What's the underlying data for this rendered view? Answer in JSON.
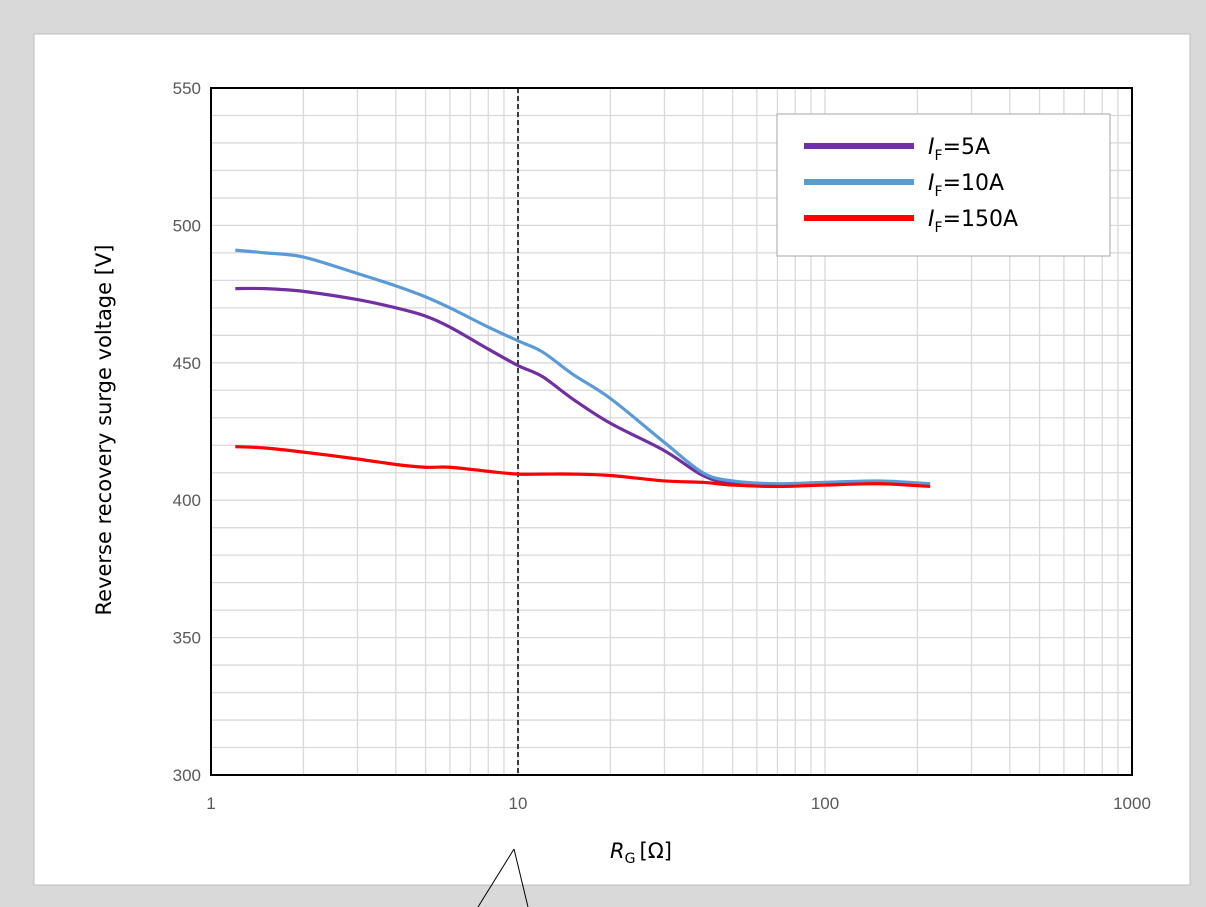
{
  "chart_data": {
    "type": "line",
    "title": "",
    "xlabel": {
      "main": "R",
      "sub": "G",
      "unit": "[Ω]"
    },
    "ylabel": "Reverse recovery surge voltage [V]",
    "xscale": "log",
    "xlim": [
      1,
      1000
    ],
    "ylim": [
      300,
      550
    ],
    "x_tick_labels": [
      "1",
      "10",
      "100",
      "1000"
    ],
    "x_tick_values": [
      1,
      10,
      100,
      1000
    ],
    "y_tick_labels": [
      "300",
      "350",
      "400",
      "450",
      "500",
      "550"
    ],
    "y_tick_values": [
      300,
      350,
      400,
      450,
      500,
      550
    ],
    "grid": true,
    "legend_position": "top-right",
    "reference_line": {
      "x": 10,
      "style": "dashed"
    },
    "series": [
      {
        "name": "I_F=5A",
        "legend": {
          "main": "I",
          "sub": "F",
          "rest": "=5A"
        },
        "color": "#7030a0",
        "x": [
          1.2,
          1.5,
          2,
          3,
          4,
          5,
          6,
          8,
          10,
          12,
          15,
          20,
          30,
          40,
          50,
          70,
          100,
          150,
          220
        ],
        "y": [
          477,
          477,
          476,
          473,
          470,
          467,
          463,
          455,
          449,
          445,
          437,
          428,
          418,
          409,
          406,
          405.5,
          406,
          406,
          405.5
        ]
      },
      {
        "name": "I_F=10A",
        "legend": {
          "main": "I",
          "sub": "F",
          "rest": "=10A"
        },
        "color": "#5b9bd5",
        "x": [
          1.2,
          1.5,
          2,
          3,
          4,
          5,
          6,
          8,
          10,
          12,
          15,
          20,
          30,
          40,
          50,
          70,
          100,
          150,
          220
        ],
        "y": [
          491,
          490,
          488.5,
          482.5,
          478,
          474,
          470,
          463,
          458,
          454,
          446,
          437,
          421,
          410,
          407,
          406,
          406.5,
          407,
          406
        ]
      },
      {
        "name": "I_F=150A",
        "legend": {
          "main": "I",
          "sub": "F",
          "rest": "=150A"
        },
        "color": "#ff0000",
        "x": [
          1.2,
          1.5,
          2,
          3,
          4,
          5,
          6,
          8,
          10,
          12,
          15,
          20,
          30,
          40,
          50,
          70,
          100,
          150,
          220
        ],
        "y": [
          419.5,
          419,
          417.5,
          415,
          413,
          412,
          412,
          410.5,
          409.5,
          409.5,
          409.5,
          409,
          407,
          406.5,
          405.5,
          405,
          405.5,
          406,
          405
        ]
      }
    ]
  }
}
